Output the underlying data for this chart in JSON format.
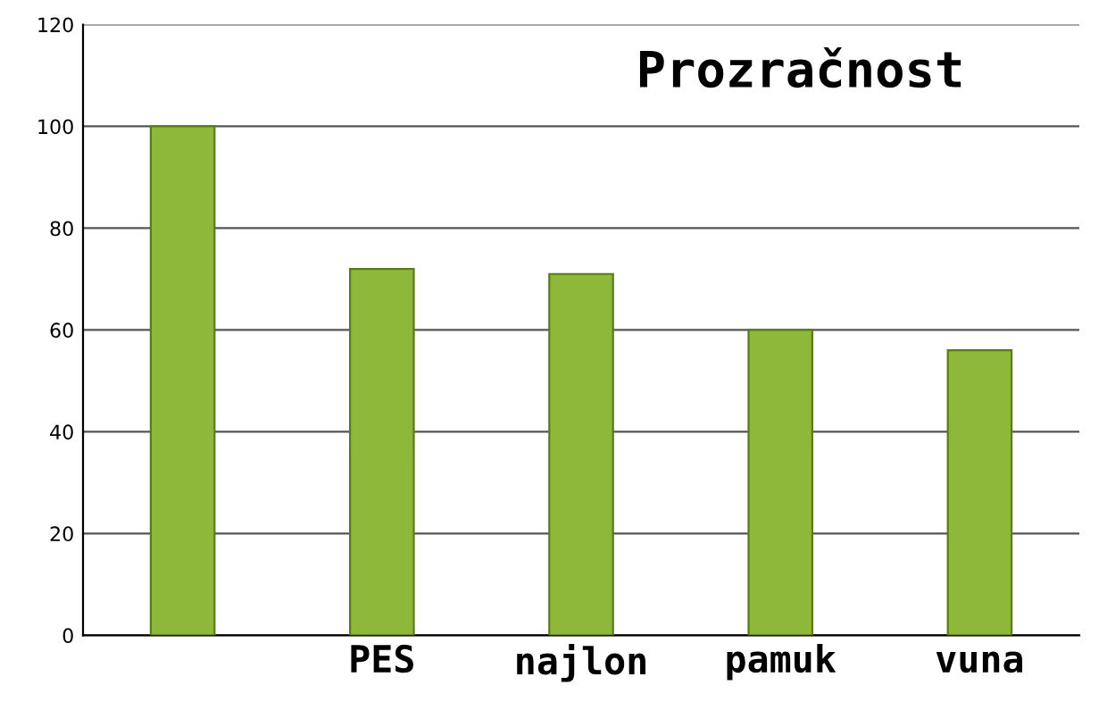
{
  "chart_data": {
    "type": "bar",
    "title": "Prozračnost",
    "categories": [
      null,
      "PES",
      "najlon",
      "pamuk",
      "vuna"
    ],
    "values": [
      100,
      72,
      71,
      60,
      56
    ],
    "color": "#8db83a",
    "ylim": [
      0,
      120
    ],
    "yticks": [
      0,
      20,
      40,
      60,
      80,
      100,
      120
    ],
    "grid": "y",
    "legend": false
  }
}
